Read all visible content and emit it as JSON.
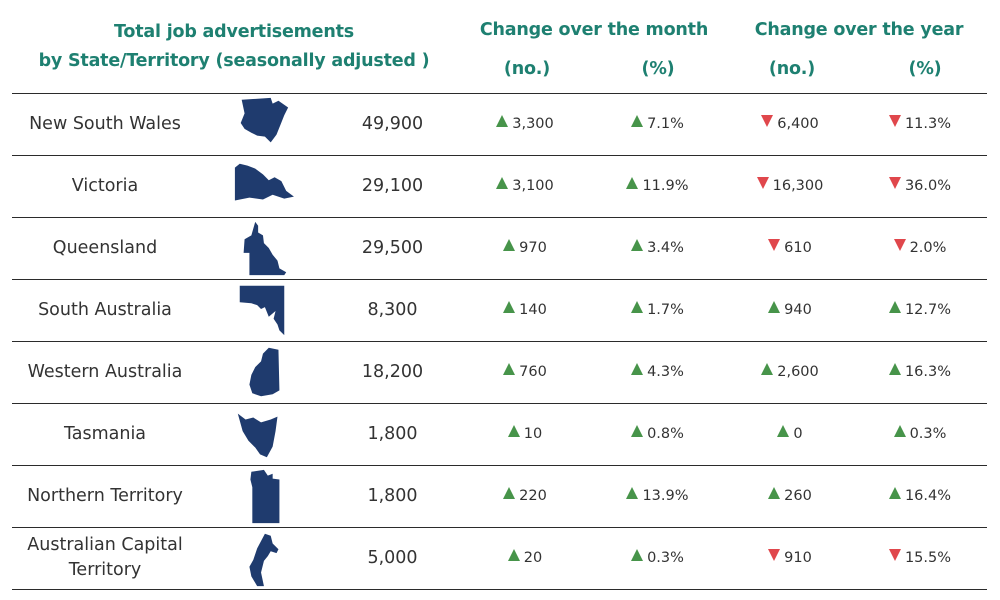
{
  "colors": {
    "header_text": "#1e8071",
    "map_fill": "#1f3b6e",
    "up_arrow": "#47944a",
    "down_arrow": "#e0474c"
  },
  "headers": {
    "title_line1": "Total job advertisements",
    "title_line2": "by State/Territory (seasonally adjusted )",
    "month": "Change over the month",
    "year": "Change over the year",
    "no_label": "(no.)",
    "pct_label": "(%)"
  },
  "chart_data": {
    "type": "table",
    "title": "Total job advertisements by State/Territory (seasonally adjusted )",
    "columns": [
      "State/Territory",
      "Total",
      "Change over the month (no.)",
      "Change over the month (%)",
      "Change over the year (no.)",
      "Change over the year (%)"
    ],
    "rows": [
      {
        "state": "New South Wales",
        "map_icon": "nsw-map-icon",
        "total": "49,900",
        "month_no": {
          "value": "3,300",
          "dir": "up"
        },
        "month_pct": {
          "value": "7.1%",
          "dir": "up"
        },
        "year_no": {
          "value": "6,400",
          "dir": "down"
        },
        "year_pct": {
          "value": "11.3%",
          "dir": "down"
        }
      },
      {
        "state": "Victoria",
        "map_icon": "vic-map-icon",
        "total": "29,100",
        "month_no": {
          "value": "3,100",
          "dir": "up"
        },
        "month_pct": {
          "value": "11.9%",
          "dir": "up"
        },
        "year_no": {
          "value": "16,300",
          "dir": "down"
        },
        "year_pct": {
          "value": "36.0%",
          "dir": "down"
        }
      },
      {
        "state": "Queensland",
        "map_icon": "qld-map-icon",
        "total": "29,500",
        "month_no": {
          "value": "970",
          "dir": "up"
        },
        "month_pct": {
          "value": "3.4%",
          "dir": "up"
        },
        "year_no": {
          "value": "610",
          "dir": "down"
        },
        "year_pct": {
          "value": "2.0%",
          "dir": "down"
        }
      },
      {
        "state": "South Australia",
        "map_icon": "sa-map-icon",
        "total": "8,300",
        "month_no": {
          "value": "140",
          "dir": "up"
        },
        "month_pct": {
          "value": "1.7%",
          "dir": "up"
        },
        "year_no": {
          "value": "940",
          "dir": "up"
        },
        "year_pct": {
          "value": "12.7%",
          "dir": "up"
        }
      },
      {
        "state": "Western Australia",
        "map_icon": "wa-map-icon",
        "total": "18,200",
        "month_no": {
          "value": "760",
          "dir": "up"
        },
        "month_pct": {
          "value": "4.3%",
          "dir": "up"
        },
        "year_no": {
          "value": "2,600",
          "dir": "up"
        },
        "year_pct": {
          "value": "16.3%",
          "dir": "up"
        }
      },
      {
        "state": "Tasmania",
        "map_icon": "tas-map-icon",
        "total": "1,800",
        "month_no": {
          "value": "10",
          "dir": "up"
        },
        "month_pct": {
          "value": "0.8%",
          "dir": "up"
        },
        "year_no": {
          "value": "0",
          "dir": "up"
        },
        "year_pct": {
          "value": "0.3%",
          "dir": "up"
        }
      },
      {
        "state": "Northern Territory",
        "map_icon": "nt-map-icon",
        "total": "1,800",
        "month_no": {
          "value": "220",
          "dir": "up"
        },
        "month_pct": {
          "value": "13.9%",
          "dir": "up"
        },
        "year_no": {
          "value": "260",
          "dir": "up"
        },
        "year_pct": {
          "value": "16.4%",
          "dir": "up"
        }
      },
      {
        "state": "Australian Capital Territory",
        "map_icon": "act-map-icon",
        "total": "5,000",
        "month_no": {
          "value": "20",
          "dir": "up"
        },
        "month_pct": {
          "value": "0.3%",
          "dir": "up"
        },
        "year_no": {
          "value": "910",
          "dir": "down"
        },
        "year_pct": {
          "value": "15.5%",
          "dir": "down"
        }
      }
    ]
  }
}
